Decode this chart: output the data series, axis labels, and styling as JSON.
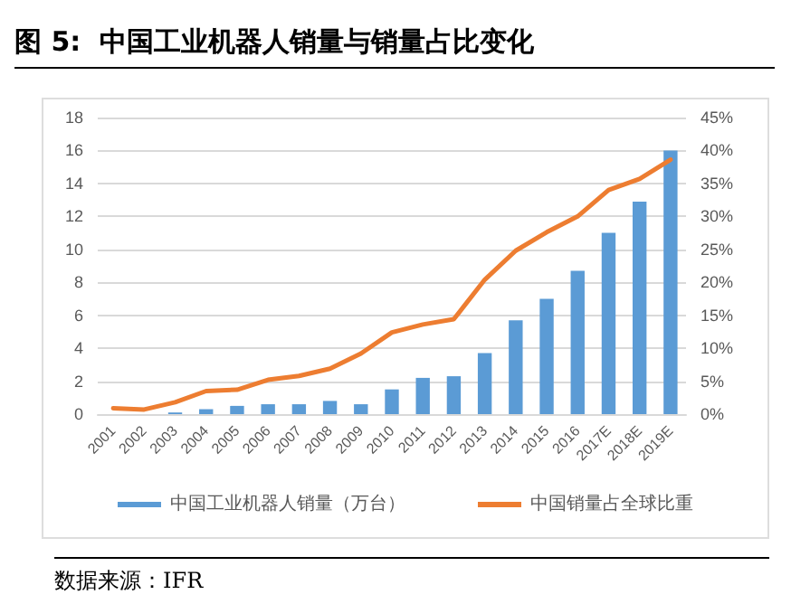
{
  "chart_data": {
    "type": "bar",
    "title": "图 5:  中国工业机器人销量与销量占比变化",
    "annotations": [
      "数据来源：IFR"
    ],
    "categories": [
      "2001",
      "2002",
      "2003",
      "2004",
      "2005",
      "2006",
      "2007",
      "2008",
      "2009",
      "2010",
      "2011",
      "2012",
      "2013",
      "2014",
      "2015",
      "2016",
      "2017E",
      "2018E",
      "2019E"
    ],
    "series": [
      {
        "name": "中国工业机器人销量（万台）",
        "color": "#5b9bd5",
        "values": [
          null,
          null,
          0.1,
          0.3,
          0.5,
          0.6,
          0.6,
          0.8,
          0.6,
          1.5,
          2.2,
          2.3,
          3.7,
          5.7,
          7.0,
          8.7,
          11.0,
          12.9,
          16.0
        ]
      },
      {
        "name": "中国销量占全球比重",
        "type": "line",
        "axis": "y2",
        "color": "#ed7d31",
        "values": [
          0.9,
          0.7,
          1.8,
          3.5,
          3.7,
          5.2,
          5.8,
          6.9,
          9.2,
          12.4,
          13.6,
          14.4,
          20.4,
          24.8,
          27.6,
          30.0,
          34.0,
          35.7,
          38.6
        ]
      }
    ],
    "ylim": [
      0,
      18
    ],
    "yticks": [
      0,
      2,
      4,
      6,
      8,
      10,
      12,
      14,
      16,
      18
    ],
    "y2lim": [
      0,
      45
    ],
    "y2ticks": [
      {
        "value": 0,
        "label": "0%"
      },
      {
        "value": 5,
        "label": "5%"
      },
      {
        "value": 10,
        "label": "10%"
      },
      {
        "value": 15,
        "label": "15%"
      },
      {
        "value": 20,
        "label": "20%"
      },
      {
        "value": 25,
        "label": "25%"
      },
      {
        "value": 30,
        "label": "30%"
      },
      {
        "value": 35,
        "label": "35%"
      },
      {
        "value": 40,
        "label": "40%"
      },
      {
        "value": 45,
        "label": "45%"
      }
    ],
    "grid": "y",
    "legend": "bottom",
    "marker": "none",
    "line_style": "solid"
  }
}
